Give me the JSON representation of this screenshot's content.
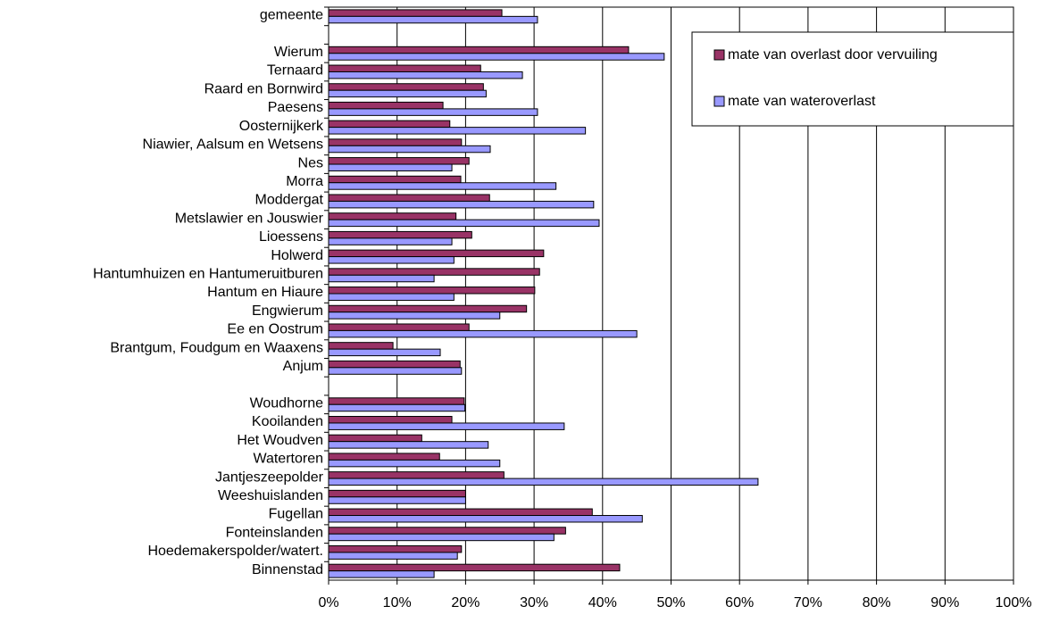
{
  "chart_data": {
    "type": "bar",
    "orientation": "horizontal",
    "categories": [
      "gemeente",
      null,
      "Wierum",
      "Ternaard",
      "Raard en Bornwird",
      "Paesens",
      "Oosternijkerk",
      "Niawier, Aalsum en Wetsens",
      "Nes",
      "Morra",
      "Moddergat",
      "Metslawier en Jouswier",
      "Lioessens",
      "Holwerd",
      "Hantumhuizen en Hantumeruitburen",
      "Hantum en Hiaure",
      "Engwierum",
      "Ee en Oostrum",
      "Brantgum, Foudgum en Waaxens",
      "Anjum",
      null,
      "Woudhorne",
      "Kooilanden",
      "Het Woudven",
      "Watertoren",
      "Jantjeszeepolder",
      "Weeshuislanden",
      "Fugellan",
      "Fonteinslanden",
      "Hoedemakerspolder/watert.",
      "Binnenstad"
    ],
    "series": [
      {
        "name": "mate van overlast door vervuiling",
        "color": "#993366",
        "values": [
          25.3,
          null,
          43.8,
          22.2,
          22.6,
          16.7,
          17.7,
          19.4,
          20.5,
          19.3,
          23.5,
          18.6,
          20.9,
          31.4,
          30.8,
          30.1,
          28.9,
          20.5,
          9.4,
          19.2,
          null,
          19.8,
          18.0,
          13.6,
          16.2,
          25.6,
          20.0,
          38.5,
          34.6,
          19.4,
          42.5
        ]
      },
      {
        "name": "mate van wateroverlast",
        "color": "#9999ff",
        "values": [
          30.5,
          null,
          49.0,
          28.3,
          23.0,
          30.5,
          37.5,
          23.6,
          18.0,
          33.2,
          38.7,
          39.5,
          18.0,
          18.3,
          15.4,
          18.3,
          25.0,
          45.0,
          16.3,
          19.4,
          null,
          19.9,
          34.4,
          23.3,
          25.0,
          62.7,
          20.0,
          45.8,
          32.9,
          18.8,
          15.4
        ]
      }
    ],
    "xlim": [
      0,
      100
    ],
    "xticks": [
      {
        "value": 0,
        "label": "0%"
      },
      {
        "value": 10,
        "label": "10%"
      },
      {
        "value": 20,
        "label": "20%"
      },
      {
        "value": 30,
        "label": "30%"
      },
      {
        "value": 40,
        "label": "40%"
      },
      {
        "value": 50,
        "label": "50%"
      },
      {
        "value": 60,
        "label": "60%"
      },
      {
        "value": 70,
        "label": "70%"
      },
      {
        "value": 80,
        "label": "80%"
      },
      {
        "value": 90,
        "label": "90%"
      },
      {
        "value": 100,
        "label": "100%"
      }
    ],
    "grid": true,
    "legend": "top-right"
  }
}
